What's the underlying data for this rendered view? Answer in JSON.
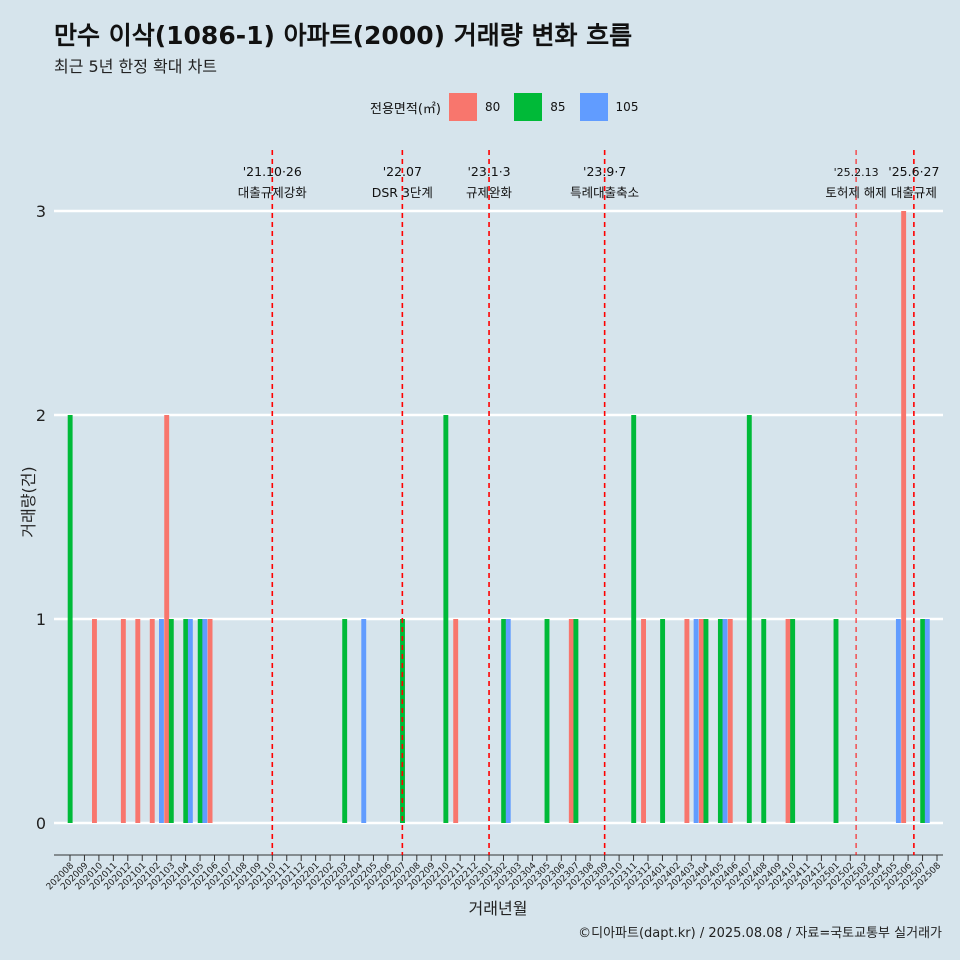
{
  "title": "만수 이삭(1086-1) 아파트(2000) 거래량 변화 흐름",
  "subtitle": "최근 5년 한정 확대 차트",
  "caption": "©디아파트(dapt.kr) / 2025.08.08 / 자료=국토교통부 실거래가",
  "legend": {
    "title": "전용면적(㎡)",
    "items": [
      {
        "label": "80",
        "color": "#f8766d"
      },
      {
        "label": "85",
        "color": "#00ba38"
      },
      {
        "label": "105",
        "color": "#619cff"
      }
    ]
  },
  "chart_data": {
    "type": "bar",
    "xlabel": "거래년월",
    "ylabel": "거래량(건)",
    "ylim": [
      0,
      3
    ],
    "yticks": [
      0,
      1,
      2,
      3
    ],
    "grid": true,
    "legend_position": "top",
    "categories": [
      "202008",
      "202009",
      "202010",
      "202011",
      "202012",
      "202101",
      "202102",
      "202103",
      "202104",
      "202105",
      "202106",
      "202107",
      "202108",
      "202109",
      "202110",
      "202111",
      "202112",
      "202201",
      "202202",
      "202203",
      "202204",
      "202205",
      "202206",
      "202207",
      "202208",
      "202209",
      "202210",
      "202211",
      "202212",
      "202301",
      "202302",
      "202303",
      "202304",
      "202305",
      "202306",
      "202307",
      "202308",
      "202309",
      "202310",
      "202311",
      "202312",
      "202401",
      "202402",
      "202403",
      "202404",
      "202405",
      "202406",
      "202407",
      "202408",
      "202409",
      "202410",
      "202411",
      "202412",
      "202501",
      "202502",
      "202503",
      "202504",
      "202505",
      "202506",
      "202507",
      "202508"
    ],
    "series": [
      {
        "name": "80",
        "color": "#f8766d",
        "values": [
          0,
          0,
          1,
          0,
          1,
          1,
          1,
          2,
          0,
          0,
          1,
          0,
          0,
          0,
          0,
          0,
          0,
          0,
          0,
          0,
          0,
          0,
          0,
          0,
          0,
          0,
          0,
          1,
          0,
          0,
          0,
          0,
          0,
          0,
          0,
          1,
          0,
          0,
          0,
          0,
          1,
          0,
          0,
          1,
          1,
          0,
          1,
          0,
          0,
          0,
          1,
          0,
          0,
          0,
          0,
          0,
          0,
          0,
          3,
          0,
          0
        ]
      },
      {
        "name": "85",
        "color": "#00ba38",
        "values": [
          2,
          0,
          0,
          0,
          0,
          0,
          0,
          1,
          1,
          1,
          0,
          0,
          0,
          0,
          0,
          0,
          0,
          0,
          0,
          1,
          0,
          0,
          0,
          1,
          0,
          0,
          2,
          0,
          0,
          0,
          1,
          0,
          0,
          1,
          0,
          1,
          0,
          0,
          0,
          2,
          0,
          1,
          0,
          0,
          1,
          1,
          0,
          2,
          1,
          0,
          1,
          0,
          0,
          1,
          0,
          0,
          0,
          0,
          0,
          1,
          0
        ]
      },
      {
        "name": "105",
        "color": "#619cff",
        "values": [
          0,
          0,
          0,
          0,
          0,
          0,
          1,
          0,
          1,
          1,
          0,
          0,
          0,
          0,
          0,
          0,
          0,
          0,
          0,
          0,
          1,
          0,
          0,
          0,
          0,
          0,
          0,
          0,
          0,
          0,
          1,
          0,
          0,
          0,
          0,
          0,
          0,
          0,
          0,
          0,
          0,
          0,
          0,
          1,
          0,
          1,
          0,
          0,
          0,
          0,
          0,
          0,
          0,
          0,
          0,
          0,
          0,
          1,
          0,
          1,
          0
        ]
      }
    ],
    "annotations": [
      {
        "position": 14.0,
        "date": "'21.10·26",
        "text": "대출규제강화",
        "thin": false
      },
      {
        "position": 23.0,
        "date": "'22.07",
        "text": "DSR 3단계",
        "thin": false
      },
      {
        "position": 29.0,
        "date": "'23.1·3",
        "text": "규제완화",
        "thin": false
      },
      {
        "position": 37.0,
        "date": "'23.9·7",
        "text": "특례대출축소",
        "thin": false
      },
      {
        "position": 54.4,
        "date": "'25.2.13",
        "text": "토허제 해제",
        "thin": true
      },
      {
        "position": 58.4,
        "date": "'25.6·27",
        "text": "대출규제",
        "thin": false
      }
    ]
  }
}
